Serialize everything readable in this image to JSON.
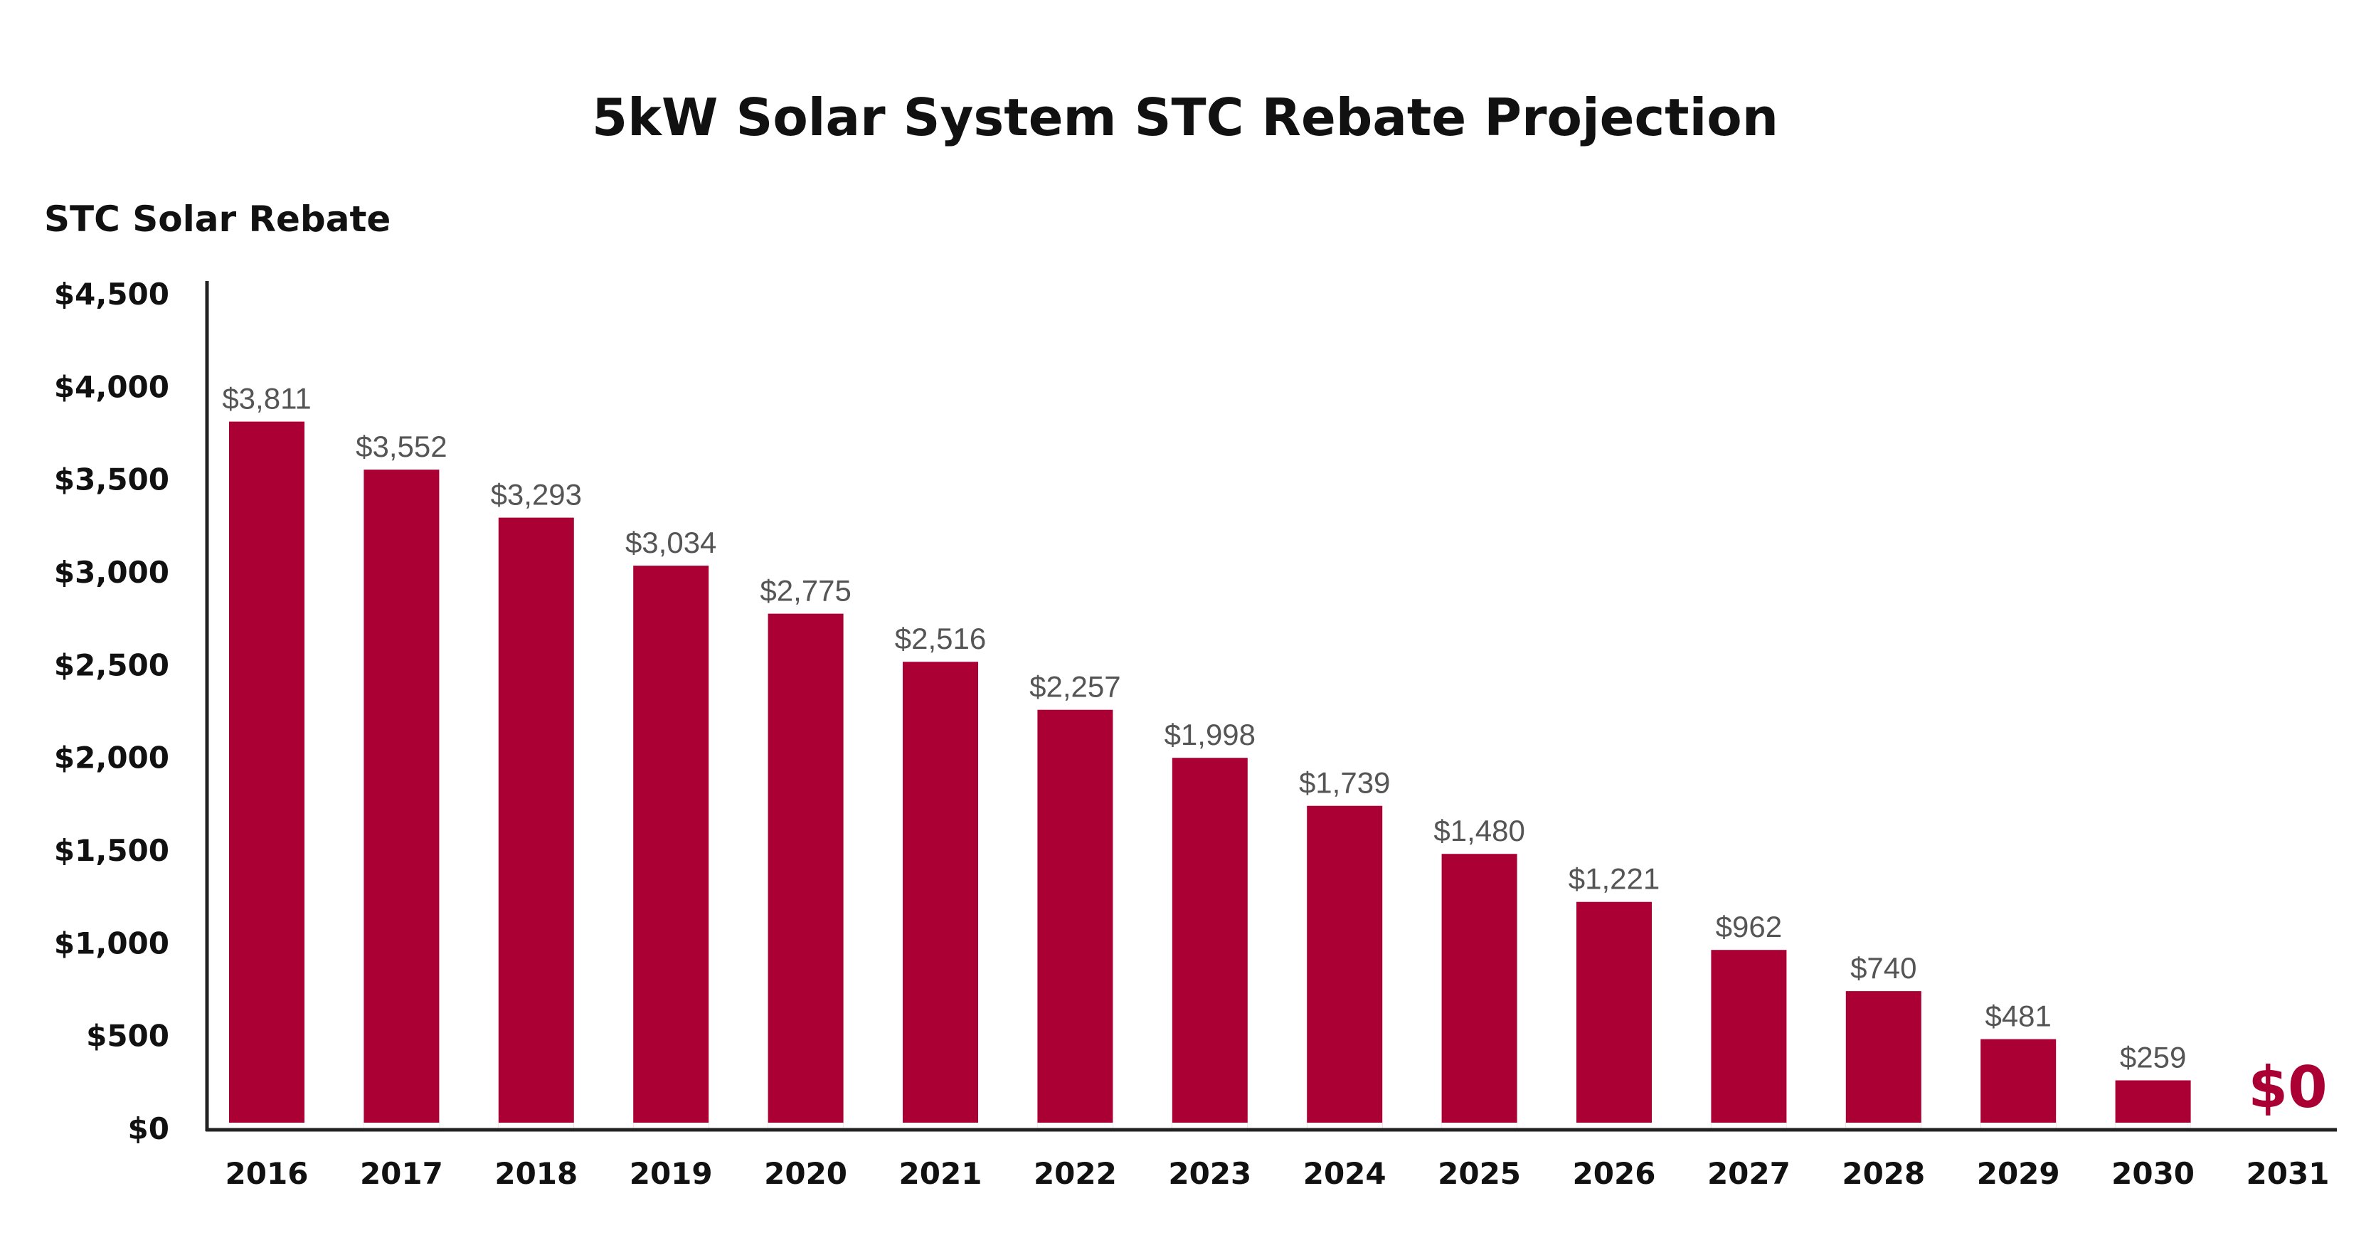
{
  "chart_data": {
    "type": "bar",
    "title": "5kW Solar System STC Rebate Projection",
    "ylabel": "STC Solar Rebate",
    "xlabel": "",
    "ylim": [
      0,
      4500
    ],
    "yticks": [
      0,
      500,
      1000,
      1500,
      2000,
      2500,
      3000,
      3500,
      4000,
      4500
    ],
    "ytick_labels": [
      "$0",
      "$500",
      "$1,000",
      "$1,500",
      "$2,000",
      "$2,500",
      "$3,000",
      "$3,500",
      "$4,000",
      "$4,500"
    ],
    "categories": [
      "2016",
      "2017",
      "2018",
      "2019",
      "2020",
      "2021",
      "2022",
      "2023",
      "2024",
      "2025",
      "2026",
      "2027",
      "2028",
      "2029",
      "2030",
      "2031"
    ],
    "values": [
      3811,
      3552,
      3293,
      3034,
      2775,
      2516,
      2257,
      1998,
      1739,
      1480,
      1221,
      962,
      740,
      481,
      259,
      0
    ],
    "data_labels": [
      "$3,811",
      "$3,552",
      "$3,293",
      "$3,034",
      "$2,775",
      "$2,516",
      "$2,257",
      "$1,998",
      "$1,739",
      "$1,480",
      "$1,221",
      "$962",
      "$740",
      "$481",
      "$259",
      "$0"
    ],
    "grid": false,
    "bar_color": "#ab0033",
    "final_label_color": "#ab0033"
  }
}
